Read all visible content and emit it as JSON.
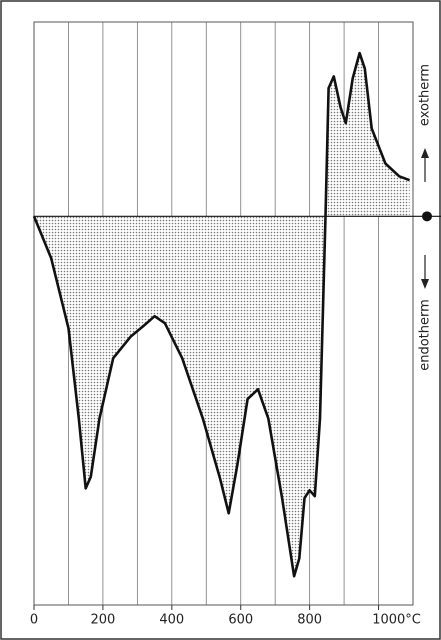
{
  "chart_data": {
    "type": "line",
    "x": [
      0,
      50,
      100,
      130,
      150,
      165,
      190,
      230,
      280,
      320,
      350,
      380,
      430,
      490,
      540,
      565,
      590,
      620,
      650,
      680,
      720,
      755,
      770,
      785,
      800,
      815,
      830,
      846,
      855,
      870,
      890,
      905,
      925,
      945,
      960,
      980,
      1020,
      1060,
      1090
    ],
    "values": [
      0,
      -10.8,
      -28.8,
      -52,
      -70,
      -67,
      -52,
      -36.5,
      -31,
      -28,
      -25.7,
      -27.5,
      -36.5,
      -52,
      -67.5,
      -76.4,
      -64,
      -47,
      -44.5,
      -52,
      -72.5,
      -92.6,
      -88,
      -72.5,
      -70.5,
      -72,
      -52,
      0,
      33,
      36,
      28,
      24,
      35.5,
      42,
      38,
      22.6,
      13.6,
      10.3,
      9.3
    ],
    "color": "#111111",
    "xlim": [
      0,
      1100
    ],
    "ylim": [
      -100,
      50
    ],
    "xticks": [
      0,
      200,
      400,
      600,
      800,
      {
        "value": 1000,
        "label": "1000°C"
      }
    ],
    "xgrid": [
      100,
      200,
      300,
      400,
      500,
      600,
      700,
      800,
      900,
      1000
    ],
    "annotations": [
      "exotherm",
      "endotherm"
    ]
  }
}
